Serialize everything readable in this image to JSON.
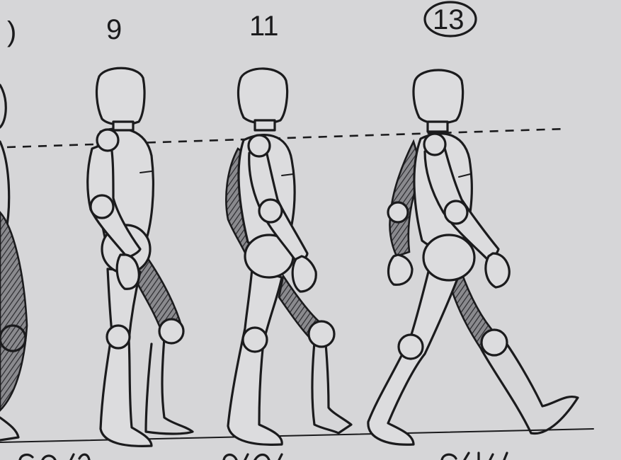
{
  "frames": [
    {
      "number": "9",
      "circled": false
    },
    {
      "number": "11",
      "circled": false
    },
    {
      "number": "13",
      "circled": true
    }
  ],
  "colors": {
    "paper": "#d6d6d8",
    "ink": "#1b1b1d"
  }
}
